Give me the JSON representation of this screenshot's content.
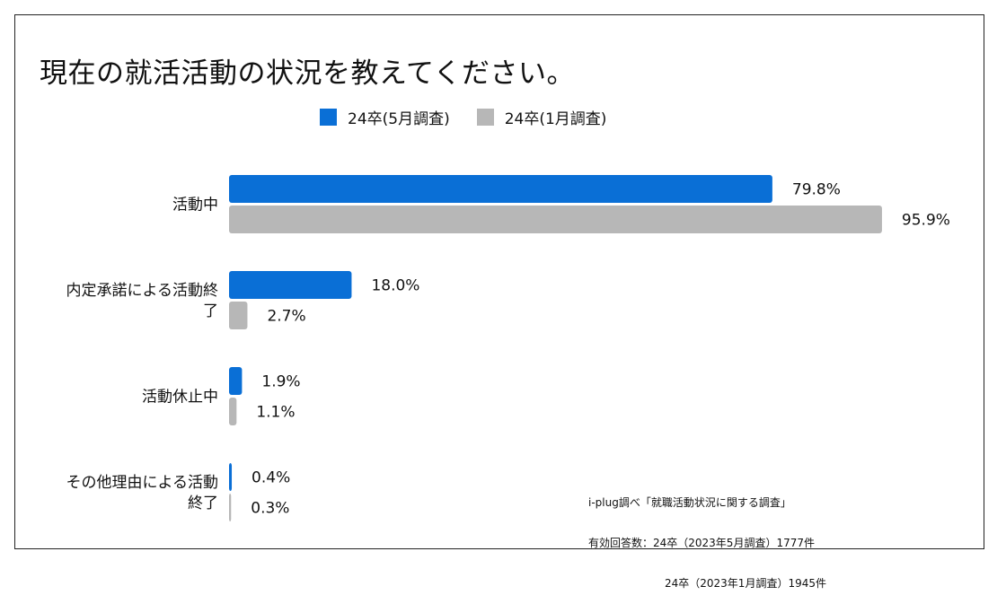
{
  "title": "現在の就活活動の状況を教えてください。",
  "colors": {
    "series1": "#0a6fd6",
    "series2": "#b7b7b7"
  },
  "legend": [
    {
      "label": "24卒(5月調査)",
      "color": "#0a6fd6"
    },
    {
      "label": "24卒(1月調査)",
      "color": "#b7b7b7"
    }
  ],
  "chart_data": {
    "type": "bar",
    "orientation": "horizontal",
    "categories": [
      {
        "lines": [
          "活動中"
        ]
      },
      {
        "lines": [
          "内定承諾による活動終",
          "了"
        ]
      },
      {
        "lines": [
          "活動休止中"
        ]
      },
      {
        "lines": [
          "その他理由による活動",
          "終了"
        ]
      }
    ],
    "series": [
      {
        "name": "24卒(5月調査)",
        "values": [
          79.8,
          18.0,
          1.9,
          0.4
        ],
        "labels": [
          "79.8%",
          "18.0%",
          "1.9%",
          "0.4%"
        ]
      },
      {
        "name": "24卒(1月調査)",
        "values": [
          95.9,
          2.7,
          1.1,
          0.3
        ],
        "labels": [
          "95.9%",
          "2.7%",
          "1.1%",
          "0.3%"
        ]
      }
    ],
    "xlim": [
      0,
      100
    ],
    "grid": false,
    "legend_position": "top"
  },
  "source": {
    "line1": "i-plug調べ「就職活動状況に関する調査」",
    "line2": "有効回答数：24卒（2023年5月調査）1777件",
    "line3": "24卒（2023年1月調査）1945件"
  }
}
